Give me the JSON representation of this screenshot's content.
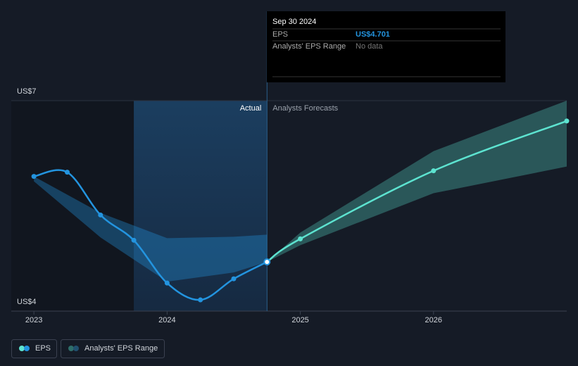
{
  "chart_data": {
    "type": "line",
    "xlim": [
      2022.83,
      2027.0
    ],
    "xticks": [
      2023,
      2024,
      2025,
      2026
    ],
    "ylim": [
      4,
      7
    ],
    "yticks": [
      {
        "value": 4,
        "label": "US$4"
      },
      {
        "value": 7,
        "label": "US$7"
      }
    ],
    "highlight_xlim": [
      2023.75,
      2024.75
    ],
    "divider_labels": [
      "Actual",
      "Analysts Forecasts"
    ],
    "series": [
      {
        "name": "EPS",
        "color": "#2394df",
        "x": [
          2023.0,
          2023.25,
          2023.5,
          2023.75,
          2024.0,
          2024.25,
          2024.5,
          2024.75
        ],
        "values": [
          5.92,
          5.98,
          5.37,
          5.01,
          4.4,
          4.16,
          4.46,
          4.701
        ]
      },
      {
        "name": "Analysts' EPS Range",
        "color": "#2394df",
        "x": [
          2023.0,
          2023.5,
          2024.0,
          2024.5,
          2024.75
        ],
        "low": [
          5.85,
          5.05,
          4.42,
          4.55,
          4.701
        ],
        "high": [
          5.92,
          5.4,
          5.04,
          5.06,
          5.09
        ]
      }
    ],
    "forecast": {
      "color": "#5de3d0",
      "x": [
        2024.75,
        2025.0,
        2026.0,
        2027.0
      ],
      "values": [
        4.701,
        5.03,
        6.0,
        6.71
      ],
      "low": [
        4.701,
        4.94,
        5.68,
        6.06
      ],
      "high": [
        4.701,
        5.12,
        6.28,
        7.0
      ]
    },
    "tooltip": {
      "date": "Sep 30 2024",
      "rows": [
        {
          "label": "EPS",
          "value": "US$4.701"
        },
        {
          "label": "Analysts' EPS Range",
          "value": "No data"
        }
      ]
    }
  }
}
